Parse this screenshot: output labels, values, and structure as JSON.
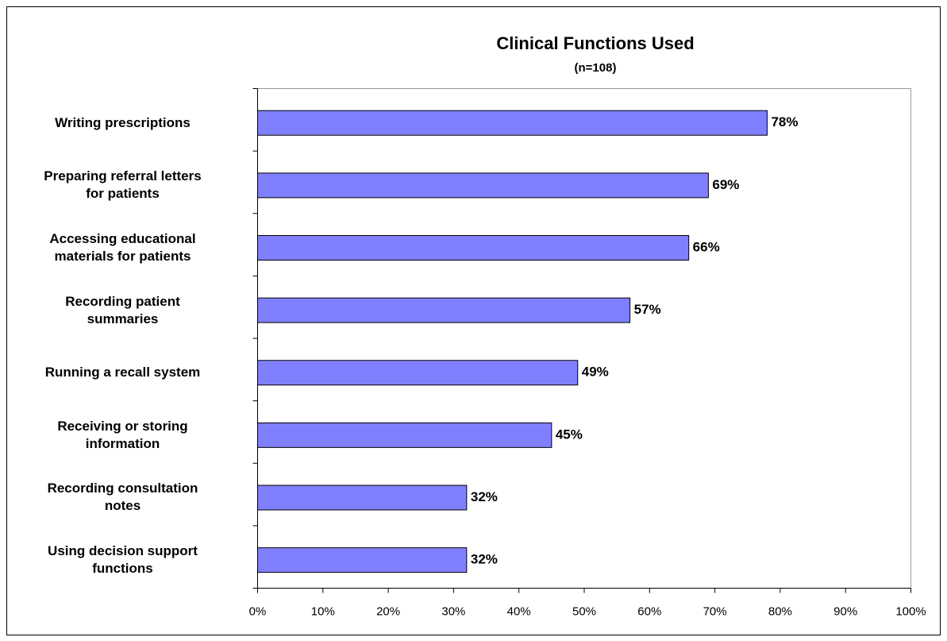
{
  "chart_data": {
    "type": "bar",
    "orientation": "horizontal",
    "title": "Clinical Functions Used",
    "subtitle": "(n=108)",
    "categories": [
      "Writing prescriptions",
      "Preparing referral letters\nfor patients",
      "Accessing educational\nmaterials for patients",
      "Recording patient\nsummaries",
      "Running a recall system",
      "Receiving or storing\ninformation",
      "Recording consultation\nnotes",
      "Using decision support\nfunctions"
    ],
    "values": [
      78,
      69,
      66,
      57,
      49,
      45,
      32,
      32
    ],
    "value_labels": [
      "78%",
      "69%",
      "66%",
      "57%",
      "49%",
      "45%",
      "32%",
      "32%"
    ],
    "color": "#8080ff",
    "xlim": [
      0,
      100
    ],
    "xticks": [
      {
        "value": 0,
        "label": "0%"
      },
      {
        "value": 10,
        "label": "10%"
      },
      {
        "value": 20,
        "label": "20%"
      },
      {
        "value": 30,
        "label": "30%"
      },
      {
        "value": 40,
        "label": "40%"
      },
      {
        "value": 50,
        "label": "50%"
      },
      {
        "value": 60,
        "label": "60%"
      },
      {
        "value": 70,
        "label": "70%"
      },
      {
        "value": 80,
        "label": "80%"
      },
      {
        "value": 90,
        "label": "90%"
      },
      {
        "value": 100,
        "label": "100%"
      }
    ],
    "grid": false
  }
}
